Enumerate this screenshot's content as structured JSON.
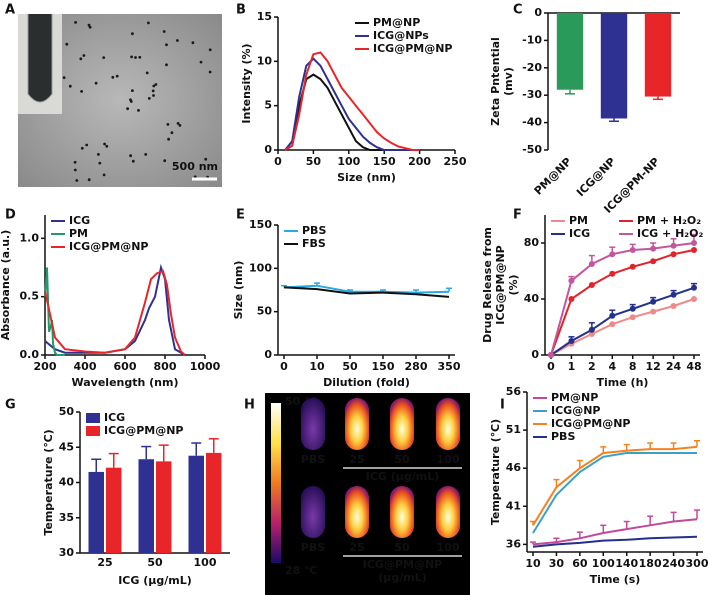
{
  "chart_data": [
    {
      "type": "image",
      "label": "A",
      "scale_label": "500 nm"
    },
    {
      "type": "line",
      "label": "B",
      "xlabel": "Size (nm)",
      "ylabel": [
        "Intensity (%)"
      ],
      "x": [
        10,
        20,
        30,
        40,
        50,
        60,
        70,
        80,
        90,
        100,
        110,
        120,
        130,
        140,
        150,
        160,
        170,
        180,
        190,
        200
      ],
      "xlim": [
        0,
        250
      ],
      "xticks": [
        0,
        50,
        100,
        150,
        200,
        250
      ],
      "ylim": [
        0,
        15
      ],
      "yticks": [
        0,
        5,
        10,
        15
      ],
      "legend": "upper right",
      "series": [
        {
          "name": "PM@NP",
          "color": "#111111",
          "values": [
            0,
            0.5,
            5,
            8,
            8.5,
            8,
            7,
            5.5,
            4,
            2.5,
            1,
            0.3,
            0,
            0,
            0,
            0,
            0,
            0,
            0,
            0
          ]
        },
        {
          "name": "ICG@NPs",
          "color": "#2e3192",
          "values": [
            0,
            1,
            6,
            9.5,
            10.3,
            9.5,
            8,
            6.5,
            5,
            3.5,
            2.5,
            1.5,
            0.8,
            0.3,
            0,
            0,
            0,
            0,
            0,
            0
          ]
        },
        {
          "name": "ICG@PM@NP",
          "color": "#e8262a",
          "values": [
            0,
            0.5,
            4,
            8.5,
            10.8,
            11,
            10,
            8.5,
            7,
            6,
            5,
            4,
            3,
            2,
            1.3,
            0.8,
            0.4,
            0.2,
            0,
            0
          ]
        }
      ]
    },
    {
      "type": "bar",
      "label": "C",
      "ylabel": [
        "Zeta Pntential",
        "(mv)"
      ],
      "categories": [
        "PM@NP",
        "ICG@NP",
        "ICG@PM-NP"
      ],
      "values": [
        -28,
        -38.5,
        -30.5
      ],
      "errors": [
        1.5,
        1,
        1
      ],
      "colors": [
        "#2a9a5a",
        "#2e3192",
        "#e8262a"
      ],
      "ylim": [
        -50,
        0
      ],
      "yticks": [
        0,
        -10,
        -20,
        -30,
        -40,
        -50
      ],
      "xtick_rotation": 45
    },
    {
      "type": "line",
      "label": "D",
      "xlabel": "Wavelength (nm)",
      "ylabel": [
        "Absorbance (a.u.)"
      ],
      "xlim": [
        200,
        1000
      ],
      "xticks": [
        200,
        400,
        600,
        800,
        1000
      ],
      "ylim": [
        0,
        1.2
      ],
      "yticks": [
        {
          "value": 0,
          "label": "0.0"
        },
        0.5,
        {
          "value": 1,
          "label": "1.0"
        }
      ],
      "legend": "upper left",
      "series": [
        {
          "name": "ICG",
          "color": "#2e3192",
          "x": [
            200,
            250,
            300,
            400,
            500,
            600,
            650,
            700,
            720,
            750,
            780,
            800,
            820,
            850,
            900
          ],
          "values": [
            0.12,
            0.05,
            0.02,
            0.02,
            0.02,
            0.05,
            0.12,
            0.3,
            0.4,
            0.5,
            0.75,
            0.65,
            0.3,
            0.05,
            0
          ]
        },
        {
          "name": "PM",
          "color": "#1f9a6a",
          "x": [
            200,
            210,
            220,
            230,
            235,
            240,
            250,
            260,
            300
          ],
          "values": [
            0.5,
            0.75,
            0.2,
            0.25,
            0.3,
            0.1,
            0.02,
            0,
            0
          ]
        },
        {
          "name": "ICG@PM@NP",
          "color": "#e8262a",
          "x": [
            200,
            250,
            300,
            400,
            500,
            600,
            650,
            700,
            730,
            760,
            790,
            810,
            830,
            850,
            880,
            900
          ],
          "values": [
            0.55,
            0.15,
            0.05,
            0.03,
            0.02,
            0.05,
            0.15,
            0.45,
            0.65,
            0.7,
            0.72,
            0.6,
            0.35,
            0.15,
            0.03,
            0
          ]
        }
      ]
    },
    {
      "type": "line",
      "label": "E",
      "xlabel": "Dilution (fold)",
      "ylabel": [
        "Size (nm)"
      ],
      "categories": [
        "0",
        "10",
        "50",
        "150",
        "280",
        "350"
      ],
      "ylim": [
        0,
        150
      ],
      "yticks": [
        0,
        50,
        100,
        150
      ],
      "legend": "upper left",
      "series": [
        {
          "name": "PBS",
          "color": "#29a9e0",
          "values": [
            78,
            80,
            73,
            73,
            72,
            73
          ],
          "errors": [
            2,
            3,
            2,
            2,
            3,
            4
          ]
        },
        {
          "name": "FBS",
          "color": "#111111",
          "values": [
            78,
            76,
            71,
            72,
            70,
            67
          ]
        }
      ]
    },
    {
      "type": "line",
      "label": "F",
      "xlabel": "Time (h)",
      "ylabel": [
        "Drug Release from",
        "ICG@PM@NP",
        "(%)"
      ],
      "categories": [
        "0",
        "1",
        "2",
        "4",
        "8",
        "12",
        "24",
        "48"
      ],
      "ylim": [
        0,
        100
      ],
      "yticks": [
        0,
        40,
        80
      ],
      "legend": "upper left",
      "legend_columns": 2,
      "markers": true,
      "series": [
        {
          "name": "PM",
          "color": "#f08a8a",
          "values": [
            0,
            8,
            15,
            22,
            27,
            31,
            35,
            40
          ]
        },
        {
          "name": "PM + H₂O₂",
          "color": "#e0242a",
          "values": [
            0,
            40,
            50,
            58,
            63,
            67,
            72,
            75
          ]
        },
        {
          "name": "ICG",
          "color": "#23308c",
          "values": [
            0,
            10,
            18,
            28,
            33,
            38,
            43,
            48
          ],
          "errors": [
            0,
            3,
            5,
            4,
            3,
            3,
            3,
            3
          ]
        },
        {
          "name": "ICG + H₂O₂",
          "color": "#c4569c",
          "values": [
            0,
            53,
            65,
            72,
            75,
            76,
            78,
            80
          ],
          "errors": [
            0,
            3,
            6,
            5,
            4,
            4,
            5,
            6
          ]
        }
      ]
    },
    {
      "type": "bar",
      "label": "G",
      "xlabel": "ICG (μg/mL)",
      "ylabel": [
        "Temperature (℃)"
      ],
      "categories": [
        "25",
        "50",
        "100"
      ],
      "ylim": [
        30,
        50
      ],
      "yticks": [
        30,
        35,
        40,
        45,
        50
      ],
      "legend": "upper left",
      "series": [
        {
          "name": "ICG",
          "color": "#2e3192",
          "values": [
            41.5,
            43.3,
            43.8
          ],
          "errors": [
            1.8,
            1.8,
            1.8
          ]
        },
        {
          "name": "ICG@PM@NP",
          "color": "#e8262a",
          "values": [
            42.1,
            43,
            44.2
          ],
          "errors": [
            2,
            2.3,
            2
          ]
        }
      ]
    },
    {
      "type": "image",
      "label": "H",
      "colorbar_max": "50 ℃",
      "colorbar_min": "28 ℃",
      "rows": [
        {
          "labels": [
            "PBS",
            "25",
            "50",
            "100"
          ],
          "group": [
            "ICG (μg/mL)"
          ]
        },
        {
          "labels": [
            "PBS",
            "25",
            "50",
            "100"
          ],
          "group": [
            "ICG@PM@NP",
            "(μg/mL)"
          ]
        }
      ]
    },
    {
      "type": "line",
      "label": "I",
      "xlabel": "Time (s)",
      "ylabel": [
        "Temperature (℃)"
      ],
      "categories": [
        "10",
        "30",
        "60",
        "100",
        "140",
        "180",
        "240",
        "300"
      ],
      "ylim": [
        35,
        56
      ],
      "yticks": [
        36,
        41,
        46,
        51,
        56
      ],
      "legend": "upper left",
      "series": [
        {
          "name": "PM@NP",
          "color": "#c2489a",
          "values": [
            36,
            36.3,
            36.8,
            37.5,
            38,
            38.5,
            39,
            39.3
          ],
          "errors": [
            0.3,
            0.5,
            0.8,
            1,
            1,
            1.2,
            1.2,
            1.2
          ]
        },
        {
          "name": "ICG@NP",
          "color": "#3aa0c8",
          "values": [
            37.5,
            42.5,
            45.5,
            47.5,
            48,
            48,
            48,
            48
          ]
        },
        {
          "name": "ICG@PM@NP",
          "color": "#f5821f",
          "values": [
            38.5,
            43.5,
            46,
            48,
            48.3,
            48.5,
            48.5,
            48.8
          ],
          "errors": [
            0.5,
            1,
            1,
            0.8,
            0.8,
            0.8,
            0.8,
            0.8
          ]
        },
        {
          "name": "PBS",
          "color": "#23308c",
          "values": [
            35.7,
            36,
            36.2,
            36.5,
            36.6,
            36.8,
            36.9,
            37
          ]
        }
      ]
    }
  ]
}
